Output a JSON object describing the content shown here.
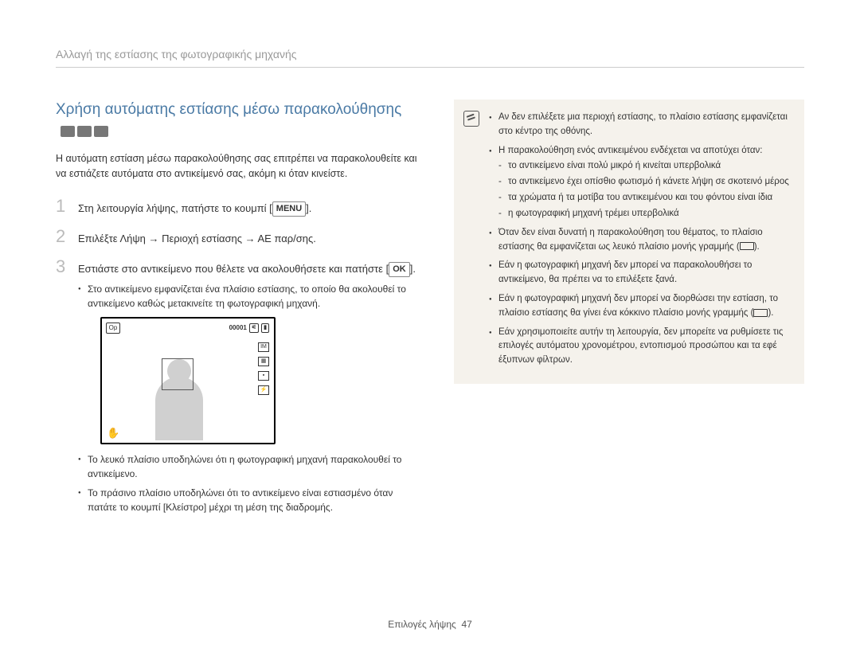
{
  "header": "Αλλαγή της εστίασης της φωτογραφικής μηχανής",
  "section": {
    "title": "Χρήση αυτόματης εστίασης μέσω παρακολούθησης",
    "intro": "Η αυτόματη εστίαση μέσω παρακολούθησης σας επιτρέπει να παρακολουθείτε και να εστιάζετε αυτόματα στο αντικείμενό σας, ακόμη κι όταν κινείστε."
  },
  "steps": {
    "s1": {
      "num": "1",
      "text_a": "Στη λειτουργία λήψης, πατήστε το κουμπί [",
      "key": "MENU",
      "text_b": "]."
    },
    "s2": {
      "num": "2",
      "text": "Επιλέξτε Λήψη → Περιοχή εστίασης → ΑΕ παρ/σης."
    },
    "s3": {
      "num": "3",
      "text_a": "Εστιάστε στο αντικείμενο που θέλετε να ακολουθήσετε και πατήστε [",
      "key": "OK",
      "text_b": "].",
      "bullets": {
        "b1": "Στο αντικείμενο εμφανίζεται ένα πλαίσιο εστίασης, το οποίο θα ακολουθεί το αντικείμενο καθώς μετακινείτε τη φωτογραφική μηχανή.",
        "b2": "Το λευκό πλαίσιο υποδηλώνει ότι η φωτογραφική μηχανή παρακολουθεί το αντικείμενο.",
        "b3": "Το πράσινο πλαίσιο υποδηλώνει ότι το αντικείμενο είναι εστιασμένο όταν πατάτε το κουμπί [Κλείστρο] μέχρι τη μέση της διαδρομής."
      }
    }
  },
  "screen": {
    "counter": "00001",
    "corner": "Op"
  },
  "notes": {
    "n1": "Αν δεν επιλέξετε μια περιοχή εστίασης, το πλαίσιο εστίασης εμφανίζεται στο κέντρο της οθόνης.",
    "n2": "Η παρακολούθηση ενός αντικειμένου ενδέχεται να αποτύχει όταν:",
    "n2_subs": {
      "a": "το αντικείμενο είναι πολύ μικρό ή κινείται υπερβολικά",
      "b": "το αντικείμενο έχει οπίσθιο φωτισμό ή κάνετε λήψη σε σκοτεινό μέρος",
      "c": "τα χρώματα ή τα μοτίβα του αντικειμένου και του φόντου είναι ίδια",
      "d": "η φωτογραφική μηχανή τρέμει υπερβολικά"
    },
    "n3_a": "Όταν δεν είναι δυνατή η παρακολούθηση του θέματος, το πλαίσιο εστίασης θα εμφανίζεται ως λευκό πλαίσιο μονής γραμμής (",
    "n3_b": ").",
    "n4": "Εάν η φωτογραφική μηχανή δεν μπορεί να παρακολουθήσει το αντικείμενο, θα πρέπει να το επιλέξετε ξανά.",
    "n5_a": "Εάν η φωτογραφική μηχανή δεν μπορεί να διορθώσει την εστίαση, το πλαίσιο εστίασης θα γίνει ένα κόκκινο πλαίσιο μονής γραμμής (",
    "n5_b": ").",
    "n6": "Εάν χρησιμοποιείτε αυτήν τη λειτουργία, δεν μπορείτε να ρυθμίσετε τις επιλογές αυτόματου χρονομέτρου, εντοπισμού προσώπου και τα εφέ έξυπνων φίλτρων."
  },
  "footer": {
    "label": "Επιλογές λήψης",
    "page": "47"
  },
  "colors": {
    "title": "#4a7aa5",
    "header_text": "#999999",
    "step_num": "#bbbbbb",
    "note_bg": "#f5f2ec"
  }
}
